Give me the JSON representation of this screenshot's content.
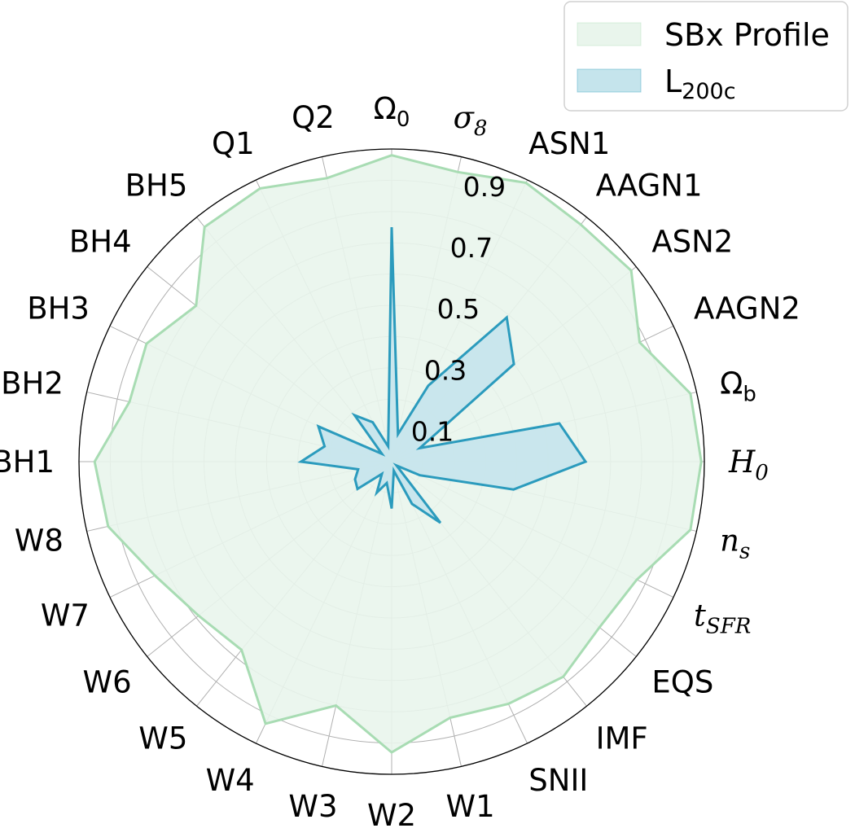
{
  "chart_data": {
    "type": "radar",
    "categories": [
      "Ω0",
      "σ8",
      "ASN1",
      "AAGN1",
      "ASN2",
      "AAGN2",
      "Ωb",
      "H0",
      "ns",
      "tSFR",
      "EQS",
      "IMF",
      "SNII",
      "W1",
      "W2",
      "W3",
      "W4",
      "W5",
      "W6",
      "W7",
      "W8",
      "BH1",
      "BH2",
      "BH3",
      "BH4",
      "BH5",
      "Q1",
      "Q2"
    ],
    "category_labels": [
      {
        "base": "Ω",
        "sub": "0",
        "math": false
      },
      {
        "base": "σ",
        "sub": "8",
        "math": true
      },
      {
        "base": "ASN1",
        "sub": "",
        "math": false
      },
      {
        "base": "AAGN1",
        "sub": "",
        "math": false
      },
      {
        "base": "ASN2",
        "sub": "",
        "math": false
      },
      {
        "base": "AAGN2",
        "sub": "",
        "math": false
      },
      {
        "base": "Ω",
        "sub": "b",
        "math": false
      },
      {
        "base": "H",
        "sub": "0",
        "math": true
      },
      {
        "base": "n",
        "sub": "s",
        "math": true
      },
      {
        "base": "t",
        "sub": "SFR",
        "math": true
      },
      {
        "base": "EQS",
        "sub": "",
        "math": false
      },
      {
        "base": "IMF",
        "sub": "",
        "math": false
      },
      {
        "base": "SNII",
        "sub": "",
        "math": false
      },
      {
        "base": "W1",
        "sub": "",
        "math": false
      },
      {
        "base": "W2",
        "sub": "",
        "math": false
      },
      {
        "base": "W3",
        "sub": "",
        "math": false
      },
      {
        "base": "W4",
        "sub": "",
        "math": false
      },
      {
        "base": "W5",
        "sub": "",
        "math": false
      },
      {
        "base": "W6",
        "sub": "",
        "math": false
      },
      {
        "base": "W7",
        "sub": "",
        "math": false
      },
      {
        "base": "W8",
        "sub": "",
        "math": false
      },
      {
        "base": "BH1",
        "sub": "",
        "math": false
      },
      {
        "base": "BH2",
        "sub": "",
        "math": false
      },
      {
        "base": "BH3",
        "sub": "",
        "math": false
      },
      {
        "base": "BH4",
        "sub": "",
        "math": false
      },
      {
        "base": "BH5",
        "sub": "",
        "math": false
      },
      {
        "base": "Q1",
        "sub": "",
        "math": false
      },
      {
        "base": "Q2",
        "sub": "",
        "math": false
      }
    ],
    "series": [
      {
        "name": "SBx Profile",
        "legend_base": "SBx Profile",
        "legend_sub": "",
        "color": "#a8dcb3",
        "fill": "#e9f5ec",
        "values": [
          0.98,
          0.95,
          0.99,
          0.97,
          0.98,
          0.88,
          0.98,
          0.99,
          0.98,
          0.87,
          0.85,
          0.88,
          0.86,
          0.84,
          0.93,
          0.8,
          0.93,
          0.77,
          0.79,
          0.84,
          0.93,
          0.95,
          0.86,
          0.87,
          0.8,
          0.96,
          0.97,
          0.93
        ]
      },
      {
        "name": "L200c",
        "legend_base": "L",
        "legend_sub": "200c",
        "color": "#2b9bbd",
        "fill": "#c5e4ec",
        "values": [
          0.75,
          0.09,
          0.27,
          0.59,
          0.5,
          0.1,
          0.55,
          0.62,
          0.4,
          0.1,
          0.02,
          0.25,
          0.15,
          0.03,
          0.15,
          0.07,
          0.11,
          0.05,
          0.14,
          0.13,
          0.11,
          0.29,
          0.22,
          0.26,
          0.04,
          0.19,
          0.14,
          0.05
        ]
      }
    ],
    "rlim": [
      0,
      1
    ],
    "ticks": [
      "0.1",
      "0.3",
      "0.5",
      "0.7",
      "0.9"
    ],
    "grid": true,
    "legend_position": "top-right"
  }
}
